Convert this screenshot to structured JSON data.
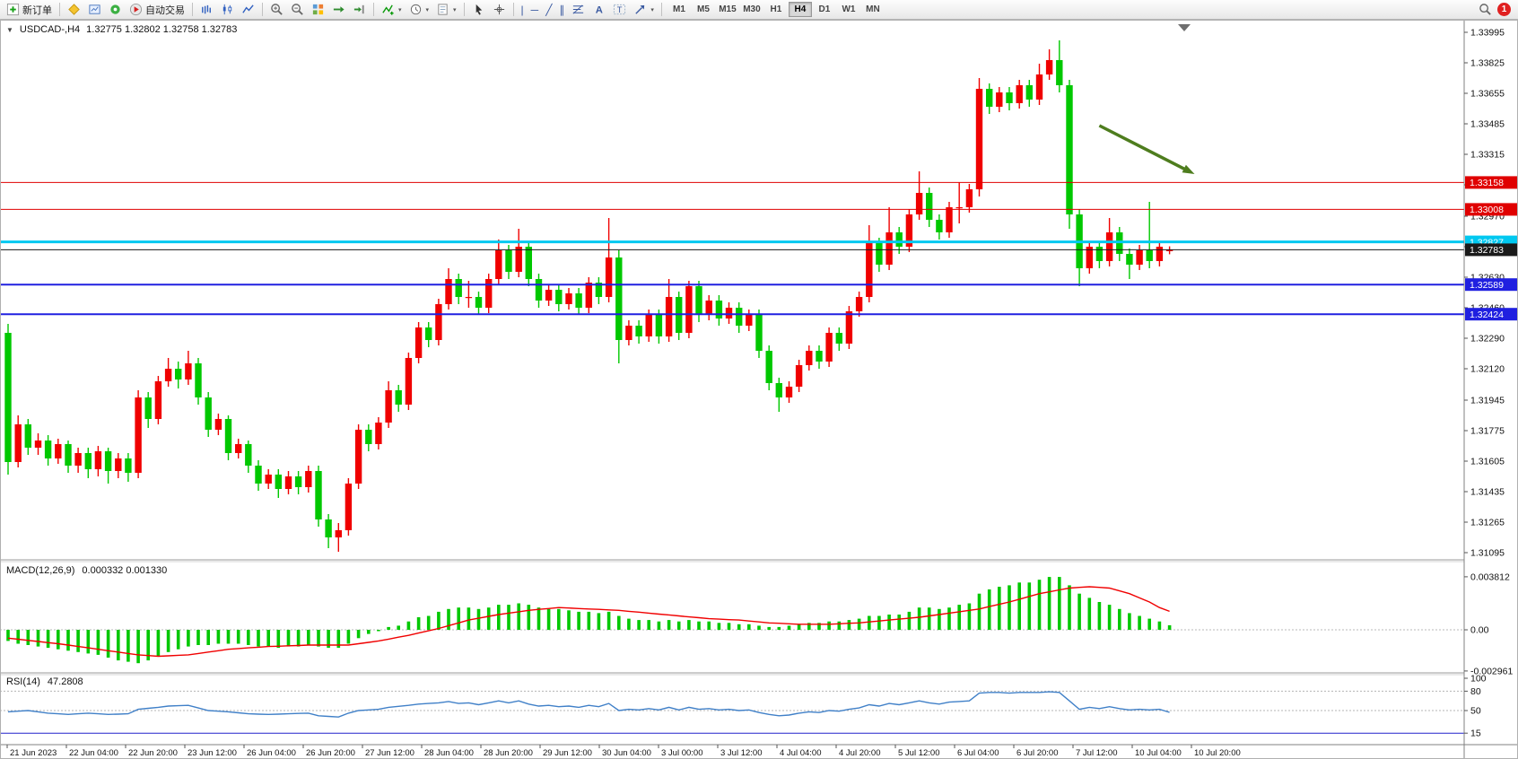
{
  "toolbar": {
    "new_order": "新订单",
    "autotrading": "自动交易",
    "timeframes": [
      "M1",
      "M5",
      "M15",
      "M30",
      "H1",
      "H4",
      "D1",
      "W1",
      "MN"
    ],
    "active_timeframe": "H4",
    "notification_count": "1"
  },
  "icons": {
    "dropdown_caret": "▾",
    "collapse_triangle": "▼",
    "vertical_line": "|",
    "horizontal_line": "─",
    "trend_line": "╱",
    "channel": "∥"
  },
  "chart_data": [
    {
      "type": "candlestick",
      "symbol": "USDCAD-",
      "timeframe": "H4",
      "title": "USDCAD-,H4",
      "ohlc_text": "1.32775 1.32802 1.32758 1.32783",
      "open": 1.32775,
      "high": 1.32802,
      "low": 1.32758,
      "close": 1.32783,
      "up_color": "#f00000",
      "down_color": "#00c800",
      "ylim": [
        1.31095,
        1.33995
      ],
      "y_ticks": [
        "1.33995",
        "1.33825",
        "1.33655",
        "1.33485",
        "1.33315",
        "1.33145",
        "1.32970",
        "1.32800",
        "1.32630",
        "1.32460",
        "1.32290",
        "1.32120",
        "1.31945",
        "1.31775",
        "1.31605",
        "1.31435",
        "1.31265",
        "1.31095"
      ],
      "hlines": [
        {
          "price": 1.33158,
          "color": "#e00000",
          "width": 1
        },
        {
          "price": 1.33008,
          "color": "#e00000",
          "width": 1
        },
        {
          "price": 1.32827,
          "color": "#00c8f0",
          "width": 3
        },
        {
          "price": 1.32783,
          "color": "#1a1a1a",
          "width": 1,
          "bid": true
        },
        {
          "price": 1.32589,
          "color": "#2020e0",
          "width": 2
        },
        {
          "price": 1.32424,
          "color": "#2020e0",
          "width": 2
        }
      ],
      "arrow": {
        "from_bar": 109,
        "from_price": 1.33475,
        "to_bar": 118.5,
        "to_price": 1.33205,
        "color": "#4e7d1e"
      },
      "x_labels": [
        "21 Jun 2023",
        "22 Jun 04:00",
        "22 Jun 20:00",
        "23 Jun 12:00",
        "26 Jun 04:00",
        "26 Jun 20:00",
        "27 Jun 12:00",
        "28 Jun 04:00",
        "28 Jun 20:00",
        "29 Jun 12:00",
        "30 Jun 04:00",
        "3 Jul 00:00",
        "3 Jul 12:00",
        "4 Jul 04:00",
        "4 Jul 20:00",
        "5 Jul 12:00",
        "6 Jul 04:00",
        "6 Jul 20:00",
        "7 Jul 12:00",
        "10 Jul 04:00",
        "10 Jul 20:00"
      ],
      "candles": [
        [
          1.3232,
          1.3237,
          1.3153,
          1.316
        ],
        [
          1.316,
          1.3186,
          1.3157,
          1.3181
        ],
        [
          1.3181,
          1.3184,
          1.3164,
          1.3168
        ],
        [
          1.3168,
          1.3176,
          1.3164,
          1.3172
        ],
        [
          1.3172,
          1.3175,
          1.3158,
          1.3162
        ],
        [
          1.3162,
          1.3173,
          1.3159,
          1.317
        ],
        [
          1.317,
          1.3172,
          1.3154,
          1.3158
        ],
        [
          1.3158,
          1.3168,
          1.3154,
          1.3165
        ],
        [
          1.3165,
          1.3168,
          1.3151,
          1.3156
        ],
        [
          1.3156,
          1.3169,
          1.3152,
          1.3166
        ],
        [
          1.3166,
          1.3168,
          1.3148,
          1.3155
        ],
        [
          1.3155,
          1.3165,
          1.3151,
          1.3162
        ],
        [
          1.3162,
          1.3165,
          1.3149,
          1.3154
        ],
        [
          1.3154,
          1.32,
          1.3151,
          1.3196
        ],
        [
          1.3196,
          1.3199,
          1.3179,
          1.3184
        ],
        [
          1.3184,
          1.3208,
          1.3181,
          1.3205
        ],
        [
          1.3205,
          1.3218,
          1.3202,
          1.3212
        ],
        [
          1.3212,
          1.3216,
          1.3201,
          1.3206
        ],
        [
          1.3206,
          1.3222,
          1.3203,
          1.3215
        ],
        [
          1.3215,
          1.3218,
          1.3192,
          1.3196
        ],
        [
          1.3196,
          1.3199,
          1.3174,
          1.3178
        ],
        [
          1.3178,
          1.3187,
          1.3175,
          1.3184
        ],
        [
          1.3184,
          1.3186,
          1.3161,
          1.3165
        ],
        [
          1.3165,
          1.3173,
          1.3162,
          1.317
        ],
        [
          1.317,
          1.3172,
          1.3154,
          1.3158
        ],
        [
          1.3158,
          1.3161,
          1.3144,
          1.3148
        ],
        [
          1.3148,
          1.3156,
          1.3145,
          1.3153
        ],
        [
          1.3153,
          1.3156,
          1.314,
          1.3145
        ],
        [
          1.3145,
          1.3155,
          1.3142,
          1.3152
        ],
        [
          1.3152,
          1.3155,
          1.3142,
          1.3146
        ],
        [
          1.3146,
          1.3158,
          1.3143,
          1.3155
        ],
        [
          1.3155,
          1.3158,
          1.3124,
          1.3128
        ],
        [
          1.3128,
          1.3131,
          1.3112,
          1.3118
        ],
        [
          1.3118,
          1.3126,
          1.311,
          1.3122
        ],
        [
          1.3122,
          1.3151,
          1.3119,
          1.3148
        ],
        [
          1.3148,
          1.3181,
          1.3145,
          1.3178
        ],
        [
          1.3178,
          1.3181,
          1.3166,
          1.317
        ],
        [
          1.317,
          1.3185,
          1.3167,
          1.3182
        ],
        [
          1.3182,
          1.3205,
          1.3179,
          1.32
        ],
        [
          1.32,
          1.3203,
          1.3188,
          1.3192
        ],
        [
          1.3192,
          1.3221,
          1.3189,
          1.3218
        ],
        [
          1.3218,
          1.3238,
          1.3215,
          1.3235
        ],
        [
          1.3235,
          1.3238,
          1.3224,
          1.3228
        ],
        [
          1.3228,
          1.3251,
          1.3225,
          1.3248
        ],
        [
          1.3248,
          1.3268,
          1.3245,
          1.3262
        ],
        [
          1.3262,
          1.3265,
          1.3248,
          1.3252
        ],
        [
          1.3252,
          1.3261,
          1.3246,
          1.3252
        ],
        [
          1.3252,
          1.3255,
          1.3242,
          1.3246
        ],
        [
          1.3246,
          1.3265,
          1.3243,
          1.3262
        ],
        [
          1.3262,
          1.3284,
          1.3259,
          1.3278
        ],
        [
          1.3278,
          1.3281,
          1.3262,
          1.3266
        ],
        [
          1.3266,
          1.329,
          1.3263,
          1.328
        ],
        [
          1.328,
          1.3283,
          1.3258,
          1.3262
        ],
        [
          1.3262,
          1.3265,
          1.3246,
          1.325
        ],
        [
          1.325,
          1.3259,
          1.3247,
          1.3256
        ],
        [
          1.3256,
          1.3259,
          1.3244,
          1.3248
        ],
        [
          1.3248,
          1.3257,
          1.3245,
          1.3254
        ],
        [
          1.3254,
          1.3257,
          1.3242,
          1.3246
        ],
        [
          1.3246,
          1.3263,
          1.3243,
          1.326
        ],
        [
          1.326,
          1.3263,
          1.3248,
          1.3252
        ],
        [
          1.3252,
          1.3296,
          1.3249,
          1.3274
        ],
        [
          1.3274,
          1.3278,
          1.3215,
          1.3228
        ],
        [
          1.3228,
          1.3239,
          1.3225,
          1.3236
        ],
        [
          1.3236,
          1.3239,
          1.3226,
          1.323
        ],
        [
          1.323,
          1.3245,
          1.3227,
          1.3242
        ],
        [
          1.3242,
          1.3245,
          1.3226,
          1.323
        ],
        [
          1.323,
          1.3262,
          1.3227,
          1.3252
        ],
        [
          1.3252,
          1.3255,
          1.3228,
          1.3232
        ],
        [
          1.3232,
          1.3261,
          1.3229,
          1.3258
        ],
        [
          1.3258,
          1.3261,
          1.3238,
          1.3242
        ],
        [
          1.3242,
          1.3253,
          1.3239,
          1.325
        ],
        [
          1.325,
          1.3253,
          1.3236,
          1.324
        ],
        [
          1.324,
          1.3249,
          1.3237,
          1.3246
        ],
        [
          1.3246,
          1.3249,
          1.3232,
          1.3236
        ],
        [
          1.3236,
          1.3245,
          1.3233,
          1.3242
        ],
        [
          1.3242,
          1.3245,
          1.3218,
          1.3222
        ],
        [
          1.3222,
          1.3225,
          1.32,
          1.3204
        ],
        [
          1.3204,
          1.3207,
          1.3188,
          1.3196
        ],
        [
          1.3196,
          1.3205,
          1.3193,
          1.3202
        ],
        [
          1.3202,
          1.3217,
          1.3199,
          1.3214
        ],
        [
          1.3214,
          1.3225,
          1.3211,
          1.3222
        ],
        [
          1.3222,
          1.3225,
          1.3212,
          1.3216
        ],
        [
          1.3216,
          1.3235,
          1.3213,
          1.3232
        ],
        [
          1.3232,
          1.3235,
          1.3222,
          1.3226
        ],
        [
          1.3226,
          1.3247,
          1.3223,
          1.3244
        ],
        [
          1.3244,
          1.3255,
          1.3241,
          1.3252
        ],
        [
          1.3252,
          1.3292,
          1.3249,
          1.3282
        ],
        [
          1.3282,
          1.3285,
          1.3266,
          1.327
        ],
        [
          1.327,
          1.3302,
          1.3267,
          1.3288
        ],
        [
          1.3288,
          1.3291,
          1.3276,
          1.328
        ],
        [
          1.328,
          1.3301,
          1.3277,
          1.3298
        ],
        [
          1.3298,
          1.3322,
          1.3295,
          1.331
        ],
        [
          1.331,
          1.3313,
          1.3291,
          1.3295
        ],
        [
          1.3295,
          1.3298,
          1.3284,
          1.3288
        ],
        [
          1.3288,
          1.3305,
          1.3285,
          1.3302
        ],
        [
          1.3302,
          1.3316,
          1.3293,
          1.3302
        ],
        [
          1.3302,
          1.3315,
          1.3299,
          1.3312
        ],
        [
          1.3312,
          1.3374,
          1.3308,
          1.3368
        ],
        [
          1.3368,
          1.3371,
          1.3354,
          1.3358
        ],
        [
          1.3358,
          1.3369,
          1.3355,
          1.3366
        ],
        [
          1.3366,
          1.3369,
          1.3356,
          1.336
        ],
        [
          1.336,
          1.3373,
          1.3357,
          1.337
        ],
        [
          1.337,
          1.3373,
          1.3358,
          1.3362
        ],
        [
          1.3362,
          1.3382,
          1.3359,
          1.3376
        ],
        [
          1.3376,
          1.339,
          1.3373,
          1.3384
        ],
        [
          1.3384,
          1.3395,
          1.3366,
          1.337
        ],
        [
          1.337,
          1.3373,
          1.329,
          1.3298
        ],
        [
          1.3298,
          1.3301,
          1.3258,
          1.3268
        ],
        [
          1.3268,
          1.3283,
          1.3265,
          1.328
        ],
        [
          1.328,
          1.3283,
          1.3268,
          1.3272
        ],
        [
          1.3272,
          1.3296,
          1.3269,
          1.3288
        ],
        [
          1.3288,
          1.3291,
          1.3272,
          1.3276
        ],
        [
          1.3276,
          1.3279,
          1.3262,
          1.327
        ],
        [
          1.327,
          1.3281,
          1.3267,
          1.3278
        ],
        [
          1.3278,
          1.3305,
          1.3268,
          1.3272
        ],
        [
          1.3272,
          1.3283,
          1.3269,
          1.328
        ],
        [
          1.32775,
          1.32802,
          1.32758,
          1.32783
        ]
      ]
    },
    {
      "type": "bar",
      "name": "MACD",
      "label": "MACD(12,26,9)",
      "values_text": "0.000332 0.001330",
      "main_value": 0.000332,
      "signal_value": 0.00133,
      "y_ticks": [
        "0.003812",
        "0.00",
        "-0.002961"
      ],
      "colors": {
        "histogram": "#00c800",
        "signal": "#f00000"
      },
      "histogram": [
        -0.0008,
        -0.001,
        -0.0011,
        -0.0012,
        -0.0013,
        -0.0014,
        -0.0015,
        -0.0016,
        -0.0017,
        -0.0018,
        -0.002,
        -0.0022,
        -0.0023,
        -0.0024,
        -0.0022,
        -0.0019,
        -0.0016,
        -0.0014,
        -0.0012,
        -0.0011,
        -0.0011,
        -0.001,
        -0.001,
        -0.001,
        -0.0011,
        -0.0012,
        -0.0012,
        -0.0013,
        -0.0012,
        -0.0012,
        -0.0011,
        -0.0012,
        -0.0013,
        -0.0013,
        -0.001,
        -0.0006,
        -0.0003,
        -0.0001,
        0.0002,
        0.0003,
        0.0006,
        0.0009,
        0.001,
        0.0013,
        0.0015,
        0.0016,
        0.0016,
        0.0015,
        0.0016,
        0.0018,
        0.0018,
        0.0019,
        0.0018,
        0.0016,
        0.0015,
        0.0015,
        0.0014,
        0.0013,
        0.0013,
        0.0012,
        0.0013,
        0.001,
        0.0008,
        0.0007,
        0.0007,
        0.0006,
        0.0007,
        0.0006,
        0.0007,
        0.0006,
        0.0006,
        0.0005,
        0.0005,
        0.0004,
        0.0004,
        0.0003,
        0.0002,
        0.0002,
        0.0003,
        0.0004,
        0.0005,
        0.0005,
        0.0006,
        0.0006,
        0.0007,
        0.0008,
        0.001,
        0.001,
        0.0011,
        0.0011,
        0.0013,
        0.0016,
        0.0016,
        0.0015,
        0.0016,
        0.0018,
        0.0019,
        0.0026,
        0.0029,
        0.0031,
        0.0032,
        0.0034,
        0.0034,
        0.0036,
        0.0038,
        0.0038,
        0.0032,
        0.0026,
        0.0023,
        0.002,
        0.0018,
        0.0015,
        0.0012,
        0.001,
        0.0008,
        0.0006,
        0.000332
      ],
      "signal": [
        -0.0006,
        -0.00068,
        -0.00076,
        -0.00084,
        -0.00092,
        -0.001,
        -0.0011,
        -0.0012,
        -0.0013,
        -0.0014,
        -0.0015,
        -0.0016,
        -0.0017,
        -0.0018,
        -0.00185,
        -0.0019,
        -0.00187,
        -0.00183,
        -0.0018,
        -0.0017,
        -0.0016,
        -0.0015,
        -0.0014,
        -0.00135,
        -0.0013,
        -0.00125,
        -0.0012,
        -0.00118,
        -0.00115,
        -0.00113,
        -0.0011,
        -0.0011,
        -0.0011,
        -0.0011,
        -0.0011,
        -0.001,
        -0.0009,
        -0.0008,
        -0.00067,
        -0.00053,
        -0.0004,
        -0.00023,
        -7e-05,
        0.0001,
        0.0003,
        0.0005,
        0.0007,
        0.00083,
        0.00097,
        0.0011,
        0.0012,
        0.0013,
        0.0014,
        0.00147,
        0.00153,
        0.0016,
        0.00157,
        0.00153,
        0.0015,
        0.00147,
        0.00143,
        0.0014,
        0.00133,
        0.00127,
        0.0012,
        0.00113,
        0.00107,
        0.001,
        0.00093,
        0.00087,
        0.0008,
        0.00077,
        0.00073,
        0.0007,
        0.00063,
        0.00057,
        0.0005,
        0.00047,
        0.00043,
        0.0004,
        0.0004,
        0.0004,
        0.0004,
        0.00043,
        0.00047,
        0.0005,
        0.00057,
        0.00063,
        0.0007,
        0.00077,
        0.00083,
        0.0009,
        0.001,
        0.0011,
        0.0012,
        0.0013,
        0.0014,
        0.0015,
        0.00167,
        0.00183,
        0.002,
        0.0022,
        0.0024,
        0.0026,
        0.00273,
        0.00287,
        0.003,
        0.00305,
        0.0031,
        0.00305,
        0.003,
        0.0028,
        0.0026,
        0.0023,
        0.002,
        0.0016,
        0.00133
      ]
    },
    {
      "type": "line",
      "name": "RSI",
      "label": "RSI(14)",
      "value_text": "47.2808",
      "current_value": 47.2808,
      "ylim": [
        0,
        100
      ],
      "y_ticks": [
        "100",
        "80",
        "50",
        "15"
      ],
      "color": "#4080c8",
      "levels": [
        {
          "value": 80,
          "color": "#b4b4b4",
          "dash": true
        },
        {
          "value": 50,
          "color": "#b4b4b4",
          "dash": true
        },
        {
          "value": 15,
          "color": "#2222cc",
          "dash": false
        }
      ],
      "values": [
        48,
        49,
        50,
        48,
        46,
        45,
        44,
        45,
        46,
        45,
        44,
        44.5,
        45,
        52,
        53.5,
        55,
        57,
        57.5,
        58,
        54,
        50,
        49,
        48,
        46.5,
        45,
        44.5,
        44,
        44.5,
        45,
        45.5,
        46,
        42,
        41,
        40,
        46,
        50,
        51,
        52,
        55,
        56.5,
        58,
        60,
        61,
        62,
        64,
        61,
        62,
        59,
        62,
        65,
        62,
        65,
        60,
        57,
        58,
        56,
        57,
        55,
        58,
        56,
        61,
        50,
        52,
        51,
        53,
        51,
        55,
        51,
        55,
        52,
        53,
        51,
        52,
        50,
        51,
        47,
        44,
        42,
        43,
        46,
        48,
        47,
        50,
        49,
        52,
        54,
        59,
        57,
        61,
        59,
        62,
        65,
        62,
        60,
        63,
        64,
        65,
        77,
        78,
        78,
        77,
        78,
        78,
        78,
        79,
        78,
        65,
        52,
        55,
        53,
        56,
        53,
        51,
        52,
        51,
        52,
        47.28
      ]
    }
  ]
}
